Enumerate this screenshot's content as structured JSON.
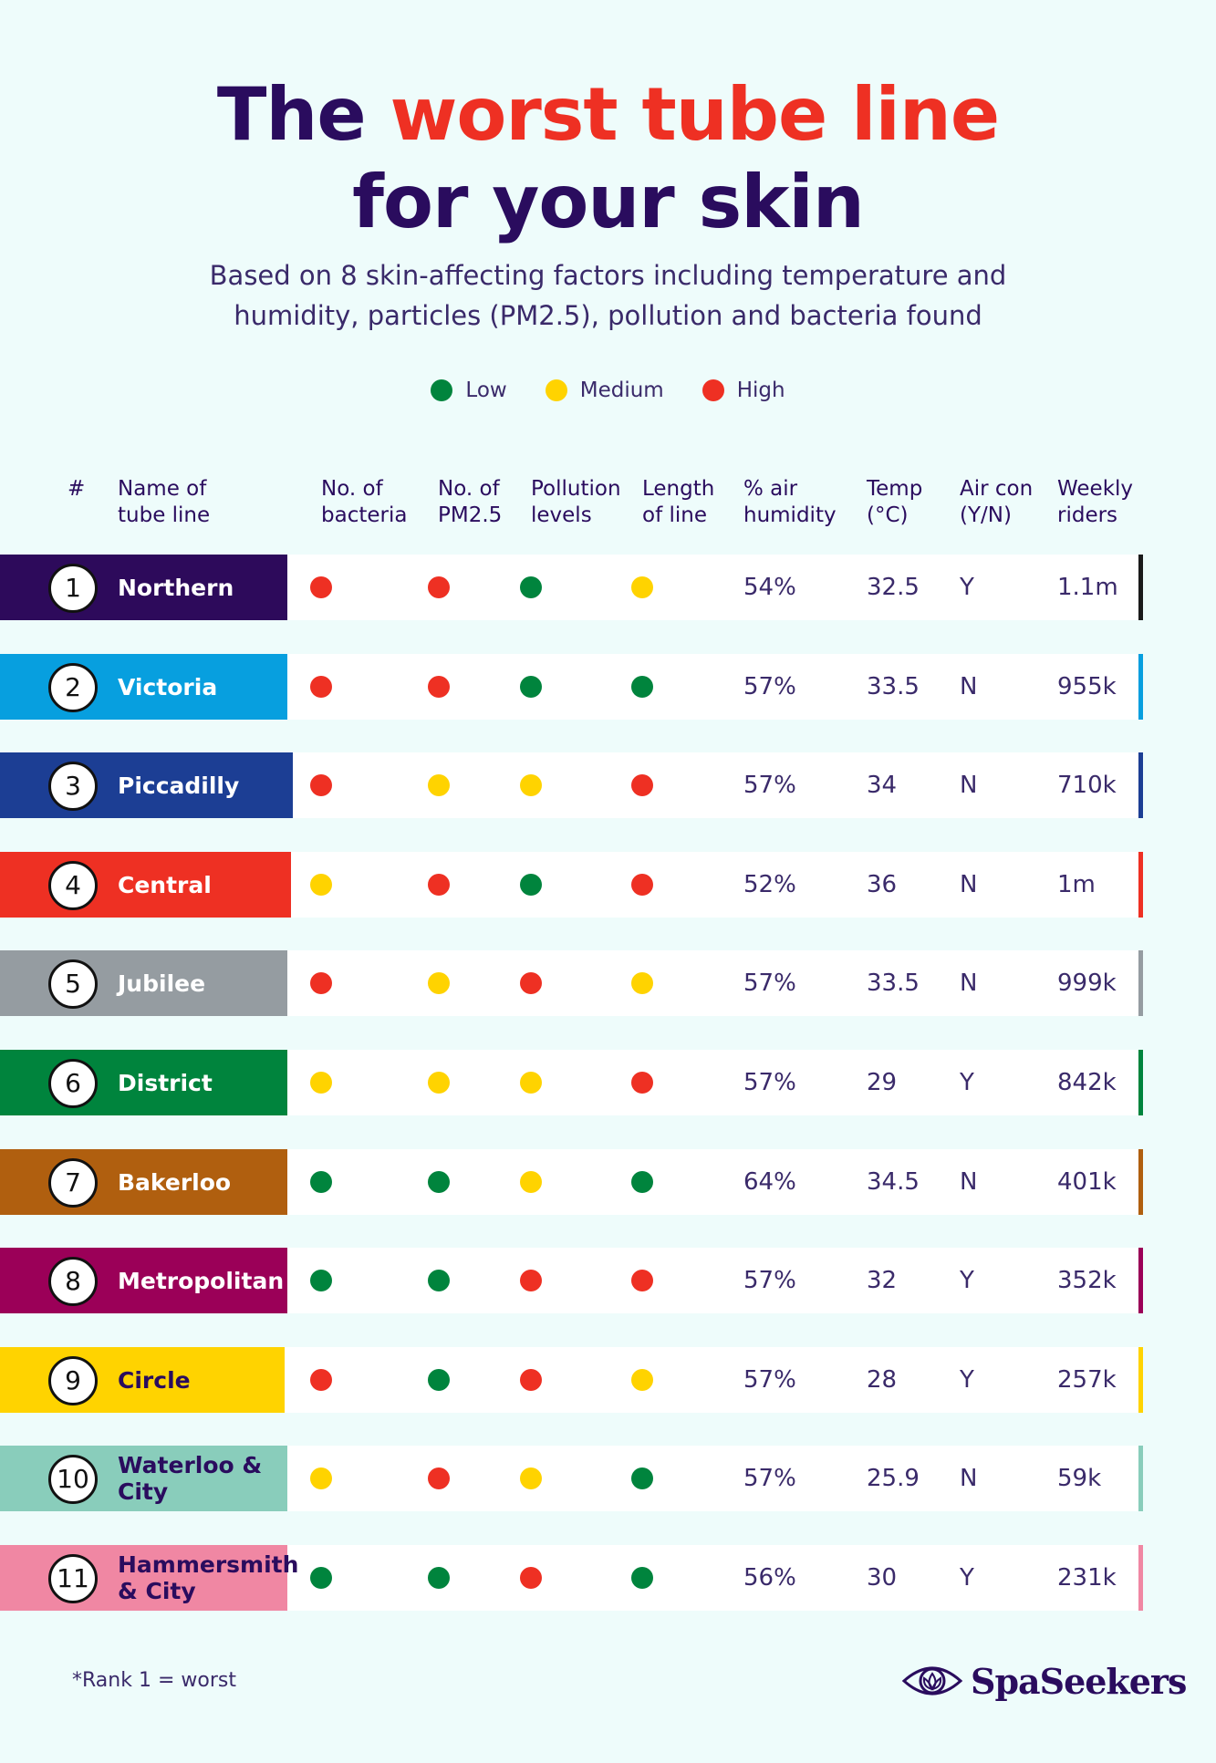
{
  "title": {
    "line1_pre": "The ",
    "line1_accent": "worst tube line",
    "line2": "for your skin"
  },
  "subtitle": {
    "line1": "Based on 8 skin-affecting factors including temperature and",
    "line2": "humidity, particles (PM2.5), pollution and bacteria found"
  },
  "legend": [
    {
      "label": "Low",
      "color": "#00843D"
    },
    {
      "label": "Medium",
      "color": "#FFD300"
    },
    {
      "label": "High",
      "color": "#EE3023"
    }
  ],
  "level_colors": {
    "L": "#00843D",
    "M": "#FFD300",
    "H": "#EE3023"
  },
  "headers": {
    "rank": "#",
    "name": "Name of\ntube line",
    "bacteria": "No. of\nbacteria",
    "pm25": "No. of\nPM2.5",
    "pollution": "Pollution\nlevels",
    "length": "Length\nof line",
    "humidity": "% air\nhumidity",
    "temp": "Temp\n(°C)",
    "aircon": "Air con\n(Y/N)",
    "riders": "Weekly\nriders"
  },
  "rows": [
    {
      "rank": "1",
      "name": "Northern",
      "color": "#2D0A5B",
      "text_color": "#ffffff",
      "end_color": "#1a1a1a",
      "bacteria": "H",
      "pm25": "H",
      "pollution": "L",
      "length": "M",
      "humidity": "54%",
      "temp": "32.5",
      "aircon": "Y",
      "riders": "1.1m"
    },
    {
      "rank": "2",
      "name": "Victoria",
      "color": "#079FDF",
      "text_color": "#ffffff",
      "end_color": "#079FDF",
      "bacteria": "H",
      "pm25": "H",
      "pollution": "L",
      "length": "L",
      "humidity": "57%",
      "temp": "33.5",
      "aircon": "N",
      "riders": "955k"
    },
    {
      "rank": "3",
      "name": "Piccadilly",
      "color": "#1C3E94",
      "text_color": "#ffffff",
      "end_color": "#1C3E94",
      "bacteria": "H",
      "pm25": "M",
      "pollution": "M",
      "length": "H",
      "humidity": "57%",
      "temp": "34",
      "aircon": "N",
      "riders": "710k"
    },
    {
      "rank": "4",
      "name": "Central",
      "color": "#EE3023",
      "text_color": "#ffffff",
      "end_color": "#EE3023",
      "bacteria": "M",
      "pm25": "H",
      "pollution": "L",
      "length": "H",
      "humidity": "52%",
      "temp": "36",
      "aircon": "N",
      "riders": "1m"
    },
    {
      "rank": "5",
      "name": "Jubilee",
      "color": "#959CA1",
      "text_color": "#ffffff",
      "end_color": "#959CA1",
      "bacteria": "H",
      "pm25": "M",
      "pollution": "H",
      "length": "M",
      "humidity": "57%",
      "temp": "33.5",
      "aircon": "N",
      "riders": "999k"
    },
    {
      "rank": "6",
      "name": "District",
      "color": "#00843D",
      "text_color": "#ffffff",
      "end_color": "#00843D",
      "bacteria": "M",
      "pm25": "M",
      "pollution": "M",
      "length": "H",
      "humidity": "57%",
      "temp": "29",
      "aircon": "Y",
      "riders": "842k"
    },
    {
      "rank": "7",
      "name": "Bakerloo",
      "color": "#B05F0F",
      "text_color": "#ffffff",
      "end_color": "#B05F0F",
      "bacteria": "L",
      "pm25": "L",
      "pollution": "M",
      "length": "L",
      "humidity": "64%",
      "temp": "34.5",
      "aircon": "N",
      "riders": "401k"
    },
    {
      "rank": "8",
      "name": "Metropolitan",
      "color": "#9B0058",
      "text_color": "#ffffff",
      "end_color": "#9B0058",
      "bacteria": "L",
      "pm25": "L",
      "pollution": "H",
      "length": "H",
      "humidity": "57%",
      "temp": "32",
      "aircon": "Y",
      "riders": "352k"
    },
    {
      "rank": "9",
      "name": "Circle",
      "color": "#FFD300",
      "text_color": "#2a0c5e",
      "end_color": "#FFD300",
      "bacteria": "H",
      "pm25": "L",
      "pollution": "H",
      "length": "M",
      "humidity": "57%",
      "temp": "28",
      "aircon": "Y",
      "riders": "257k"
    },
    {
      "rank": "10",
      "name": "Waterloo &\nCity",
      "color": "#89CDBB",
      "text_color": "#2a0c5e",
      "end_color": "#89CDBB",
      "bacteria": "M",
      "pm25": "H",
      "pollution": "M",
      "length": "L",
      "humidity": "57%",
      "temp": "25.9",
      "aircon": "N",
      "riders": "59k"
    },
    {
      "rank": "11",
      "name": "Hammersmith\n& City",
      "color": "#F087A3",
      "text_color": "#2a0c5e",
      "end_color": "#F087A3",
      "bacteria": "L",
      "pm25": "L",
      "pollution": "H",
      "length": "L",
      "humidity": "56%",
      "temp": "30",
      "aircon": "Y",
      "riders": "231k"
    }
  ],
  "footnote": "*Rank 1 = worst",
  "brand": {
    "name": "SpaSeekers",
    "icon": "lotus-eye-icon"
  }
}
